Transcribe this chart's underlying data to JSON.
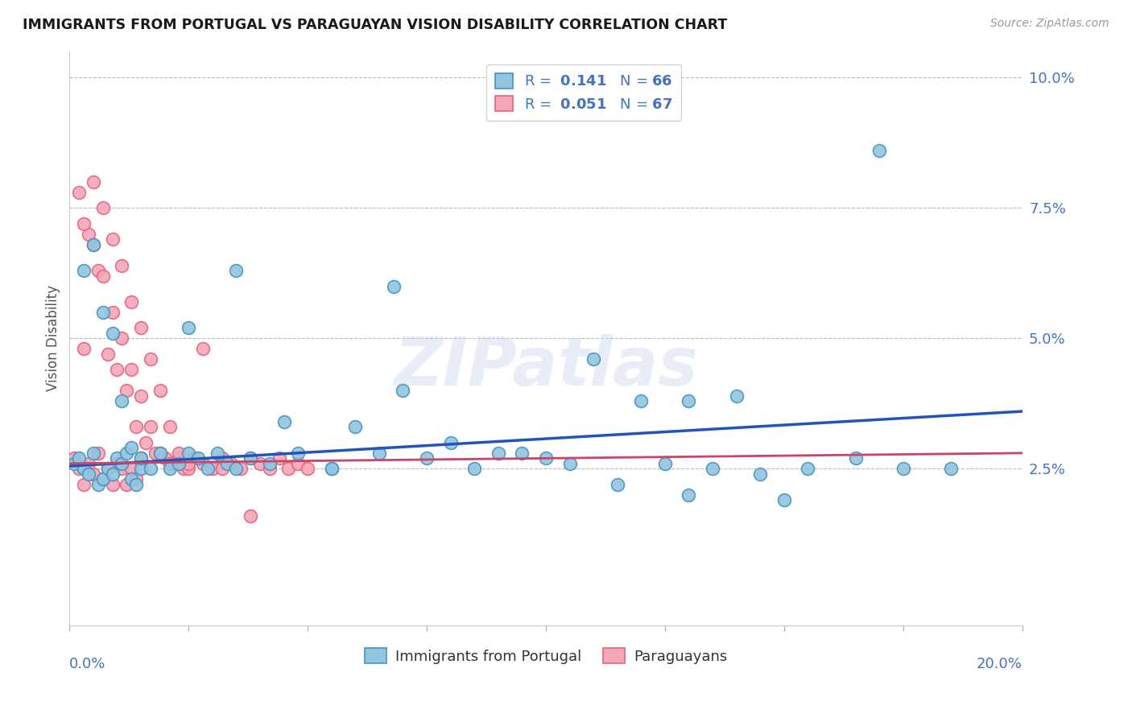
{
  "title": "IMMIGRANTS FROM PORTUGAL VS PARAGUAYAN VISION DISABILITY CORRELATION CHART",
  "source": "Source: ZipAtlas.com",
  "ylabel": "Vision Disability",
  "yticks": [
    0.0,
    0.025,
    0.05,
    0.075,
    0.1
  ],
  "ytick_labels": [
    "",
    "2.5%",
    "5.0%",
    "7.5%",
    "10.0%"
  ],
  "xlim": [
    0.0,
    0.2
  ],
  "ylim": [
    -0.005,
    0.105
  ],
  "color_blue": "#92c5de",
  "color_pink": "#f4a7b9",
  "color_blue_edge": "#4393c3",
  "color_pink_edge": "#e8627a",
  "color_text_blue": "#4472c4",
  "color_trend_blue": "#2255bb",
  "color_trend_pink": "#cc4466",
  "watermark_text": "ZIPatlas",
  "blue_line_start_y": 0.0255,
  "blue_line_end_y": 0.036,
  "pink_line_start_y": 0.026,
  "pink_line_end_y": 0.028,
  "blue_x": [
    0.001,
    0.002,
    0.003,
    0.004,
    0.005,
    0.006,
    0.007,
    0.008,
    0.009,
    0.01,
    0.011,
    0.012,
    0.013,
    0.014,
    0.015,
    0.003,
    0.005,
    0.007,
    0.009,
    0.011,
    0.013,
    0.015,
    0.017,
    0.019,
    0.021,
    0.023,
    0.025,
    0.027,
    0.029,
    0.031,
    0.033,
    0.035,
    0.038,
    0.042,
    0.048,
    0.055,
    0.065,
    0.075,
    0.085,
    0.095,
    0.105,
    0.115,
    0.125,
    0.135,
    0.145,
    0.155,
    0.165,
    0.175,
    0.185,
    0.06,
    0.07,
    0.08,
    0.09,
    0.1,
    0.11,
    0.12,
    0.13,
    0.14,
    0.025,
    0.035,
    0.045,
    0.055,
    0.068,
    0.13,
    0.15,
    0.17
  ],
  "blue_y": [
    0.026,
    0.027,
    0.025,
    0.024,
    0.028,
    0.022,
    0.023,
    0.025,
    0.024,
    0.027,
    0.026,
    0.028,
    0.023,
    0.022,
    0.025,
    0.063,
    0.068,
    0.055,
    0.051,
    0.038,
    0.029,
    0.027,
    0.025,
    0.028,
    0.025,
    0.026,
    0.028,
    0.027,
    0.025,
    0.028,
    0.026,
    0.025,
    0.027,
    0.026,
    0.028,
    0.025,
    0.028,
    0.027,
    0.025,
    0.028,
    0.026,
    0.022,
    0.026,
    0.025,
    0.024,
    0.025,
    0.027,
    0.025,
    0.025,
    0.033,
    0.04,
    0.03,
    0.028,
    0.027,
    0.046,
    0.038,
    0.038,
    0.039,
    0.052,
    0.063,
    0.034,
    0.025,
    0.06,
    0.02,
    0.019,
    0.086
  ],
  "pink_x": [
    0.001,
    0.002,
    0.003,
    0.004,
    0.005,
    0.006,
    0.007,
    0.008,
    0.009,
    0.01,
    0.011,
    0.012,
    0.013,
    0.014,
    0.015,
    0.002,
    0.004,
    0.006,
    0.008,
    0.01,
    0.012,
    0.014,
    0.016,
    0.018,
    0.02,
    0.022,
    0.024,
    0.026,
    0.028,
    0.03,
    0.032,
    0.034,
    0.036,
    0.038,
    0.04,
    0.042,
    0.044,
    0.046,
    0.048,
    0.05,
    0.003,
    0.005,
    0.007,
    0.009,
    0.011,
    0.013,
    0.015,
    0.017,
    0.019,
    0.021,
    0.023,
    0.025,
    0.003,
    0.005,
    0.007,
    0.009,
    0.011,
    0.013,
    0.015,
    0.017,
    0.019,
    0.021,
    0.023,
    0.025,
    0.028,
    0.032,
    0.038
  ],
  "pink_y": [
    0.027,
    0.025,
    0.022,
    0.026,
    0.024,
    0.028,
    0.023,
    0.025,
    0.022,
    0.026,
    0.025,
    0.022,
    0.025,
    0.023,
    0.027,
    0.078,
    0.07,
    0.063,
    0.047,
    0.044,
    0.04,
    0.033,
    0.03,
    0.028,
    0.027,
    0.026,
    0.025,
    0.027,
    0.026,
    0.025,
    0.027,
    0.026,
    0.025,
    0.027,
    0.026,
    0.025,
    0.027,
    0.025,
    0.026,
    0.025,
    0.072,
    0.068,
    0.062,
    0.055,
    0.05,
    0.044,
    0.039,
    0.033,
    0.028,
    0.026,
    0.027,
    0.025,
    0.048,
    0.08,
    0.075,
    0.069,
    0.064,
    0.057,
    0.052,
    0.046,
    0.04,
    0.033,
    0.028,
    0.026,
    0.048,
    0.025,
    0.016
  ]
}
